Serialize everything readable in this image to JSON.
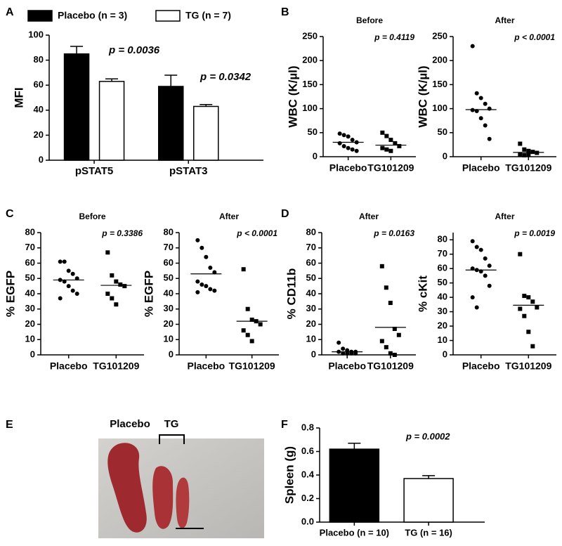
{
  "chart_data": [
    {
      "type": "bar",
      "label": "A",
      "ylabel": "MFI",
      "categories": [
        "pSTAT5",
        "pSTAT3"
      ],
      "series": [
        {
          "name": "Placebo (n = 3)",
          "color": "#000000",
          "values": [
            85,
            59
          ],
          "errors": [
            6,
            9
          ]
        },
        {
          "name": "TG (n = 7)",
          "color": "#ffffff",
          "values": [
            63,
            43
          ],
          "errors": [
            2,
            1.5
          ]
        }
      ],
      "ylim": [
        0,
        100
      ],
      "yticks": [
        0,
        20,
        40,
        60,
        80,
        100
      ],
      "annotations": [
        "p = 0.0036",
        "p = 0.0342"
      ]
    },
    {
      "type": "dot",
      "label": "B",
      "title": "Before",
      "ylabel": "WBC (K/µl)",
      "pvalue": "p = 0.4119",
      "categories": [
        "Placebo",
        "TG101209"
      ],
      "markers": [
        "circle",
        "square"
      ],
      "values": [
        [
          48,
          45,
          42,
          35,
          30,
          28,
          22,
          18,
          15,
          12
        ],
        [
          50,
          43,
          35,
          28,
          22,
          18,
          15,
          12
        ]
      ],
      "means": [
        30,
        24
      ],
      "ylim": [
        0,
        250
      ],
      "yticks": [
        0,
        50,
        100,
        150,
        200,
        250
      ]
    },
    {
      "type": "dot",
      "title": "After",
      "ylabel": "WBC (K/µl)",
      "pvalue": "p < 0.0001",
      "categories": [
        "Placebo",
        "TG101209"
      ],
      "markers": [
        "circle",
        "square"
      ],
      "values": [
        [
          230,
          132,
          122,
          110,
          100,
          97,
          95,
          80,
          65,
          37
        ],
        [
          27,
          15,
          12,
          10,
          8,
          5,
          3,
          5
        ]
      ],
      "means": [
        98,
        9
      ],
      "ylim": [
        0,
        250
      ],
      "yticks": [
        0,
        50,
        100,
        150,
        200,
        250
      ]
    },
    {
      "type": "dot",
      "label": "C",
      "title": "Before",
      "ylabel": "% EGFP",
      "pvalue": "p = 0.3386",
      "categories": [
        "Placebo",
        "TG101209"
      ],
      "markers": [
        "circle",
        "square"
      ],
      "values": [
        [
          61,
          61,
          55,
          53,
          50,
          49,
          48,
          45,
          42,
          40,
          37
        ],
        [
          67,
          52,
          48,
          46,
          45,
          40,
          37,
          33
        ]
      ],
      "means": [
        49,
        45.5
      ],
      "ylim": [
        0,
        80
      ],
      "yticks": [
        0,
        10,
        20,
        30,
        40,
        50,
        60,
        70,
        80
      ]
    },
    {
      "type": "dot",
      "title": "After",
      "ylabel": "% EGFP",
      "pvalue": "p < 0.0001",
      "categories": [
        "Placebo",
        "TG101209"
      ],
      "markers": [
        "circle",
        "square"
      ],
      "values": [
        [
          75,
          70,
          64,
          57,
          54,
          48,
          46,
          45,
          43,
          42,
          41
        ],
        [
          56,
          30,
          23,
          22,
          20,
          16,
          13,
          9
        ]
      ],
      "means": [
        53,
        22
      ],
      "ylim": [
        0,
        80
      ],
      "yticks": [
        0,
        10,
        20,
        30,
        40,
        50,
        60,
        70,
        80
      ]
    },
    {
      "type": "dot",
      "label": "D",
      "title": "After",
      "ylabel": "% CD11b",
      "pvalue": "p = 0.0163",
      "categories": [
        "Placebo",
        "TG101209"
      ],
      "markers": [
        "circle",
        "square"
      ],
      "values": [
        [
          8,
          4,
          3,
          2,
          2,
          2,
          1,
          1,
          1,
          1
        ],
        [
          58,
          44,
          34,
          17,
          13,
          9,
          5,
          1,
          0
        ]
      ],
      "means": [
        2,
        18
      ],
      "ylim": [
        0,
        80
      ],
      "yticks": [
        0,
        10,
        20,
        30,
        40,
        50,
        60,
        70,
        80
      ]
    },
    {
      "type": "dot",
      "title": "After",
      "ylabel": "% cKit",
      "pvalue": "p = 0.0019",
      "categories": [
        "Placebo",
        "TG101209"
      ],
      "markers": [
        "circle",
        "square"
      ],
      "values": [
        [
          79,
          75,
          73,
          67,
          62,
          60,
          59,
          58,
          55,
          48,
          40,
          33
        ],
        [
          70,
          41,
          40,
          37,
          33,
          32,
          27,
          16,
          6
        ]
      ],
      "means": [
        59,
        34.5
      ],
      "ylim": [
        0,
        85
      ],
      "yticks": [
        0,
        10,
        20,
        30,
        40,
        50,
        60,
        70,
        80
      ]
    },
    {
      "type": "bar",
      "label": "F",
      "ylabel": "Spleen (g)",
      "categories": [
        "Placebo (n = 10)",
        "TG (n = 16)"
      ],
      "series": [
        {
          "colors": [
            "#000000",
            "#ffffff"
          ],
          "values": [
            0.62,
            0.37
          ],
          "errors": [
            0.05,
            0.025
          ]
        }
      ],
      "ylim": [
        0,
        0.8
      ],
      "yticks": [
        {
          "value": 0,
          "label": "0.0"
        },
        0.2,
        0.4,
        0.6,
        0.8
      ],
      "annotations": [
        "p = 0.0002"
      ]
    }
  ],
  "photo": {
    "label": "E",
    "labels": [
      "Placebo",
      "TG"
    ]
  }
}
